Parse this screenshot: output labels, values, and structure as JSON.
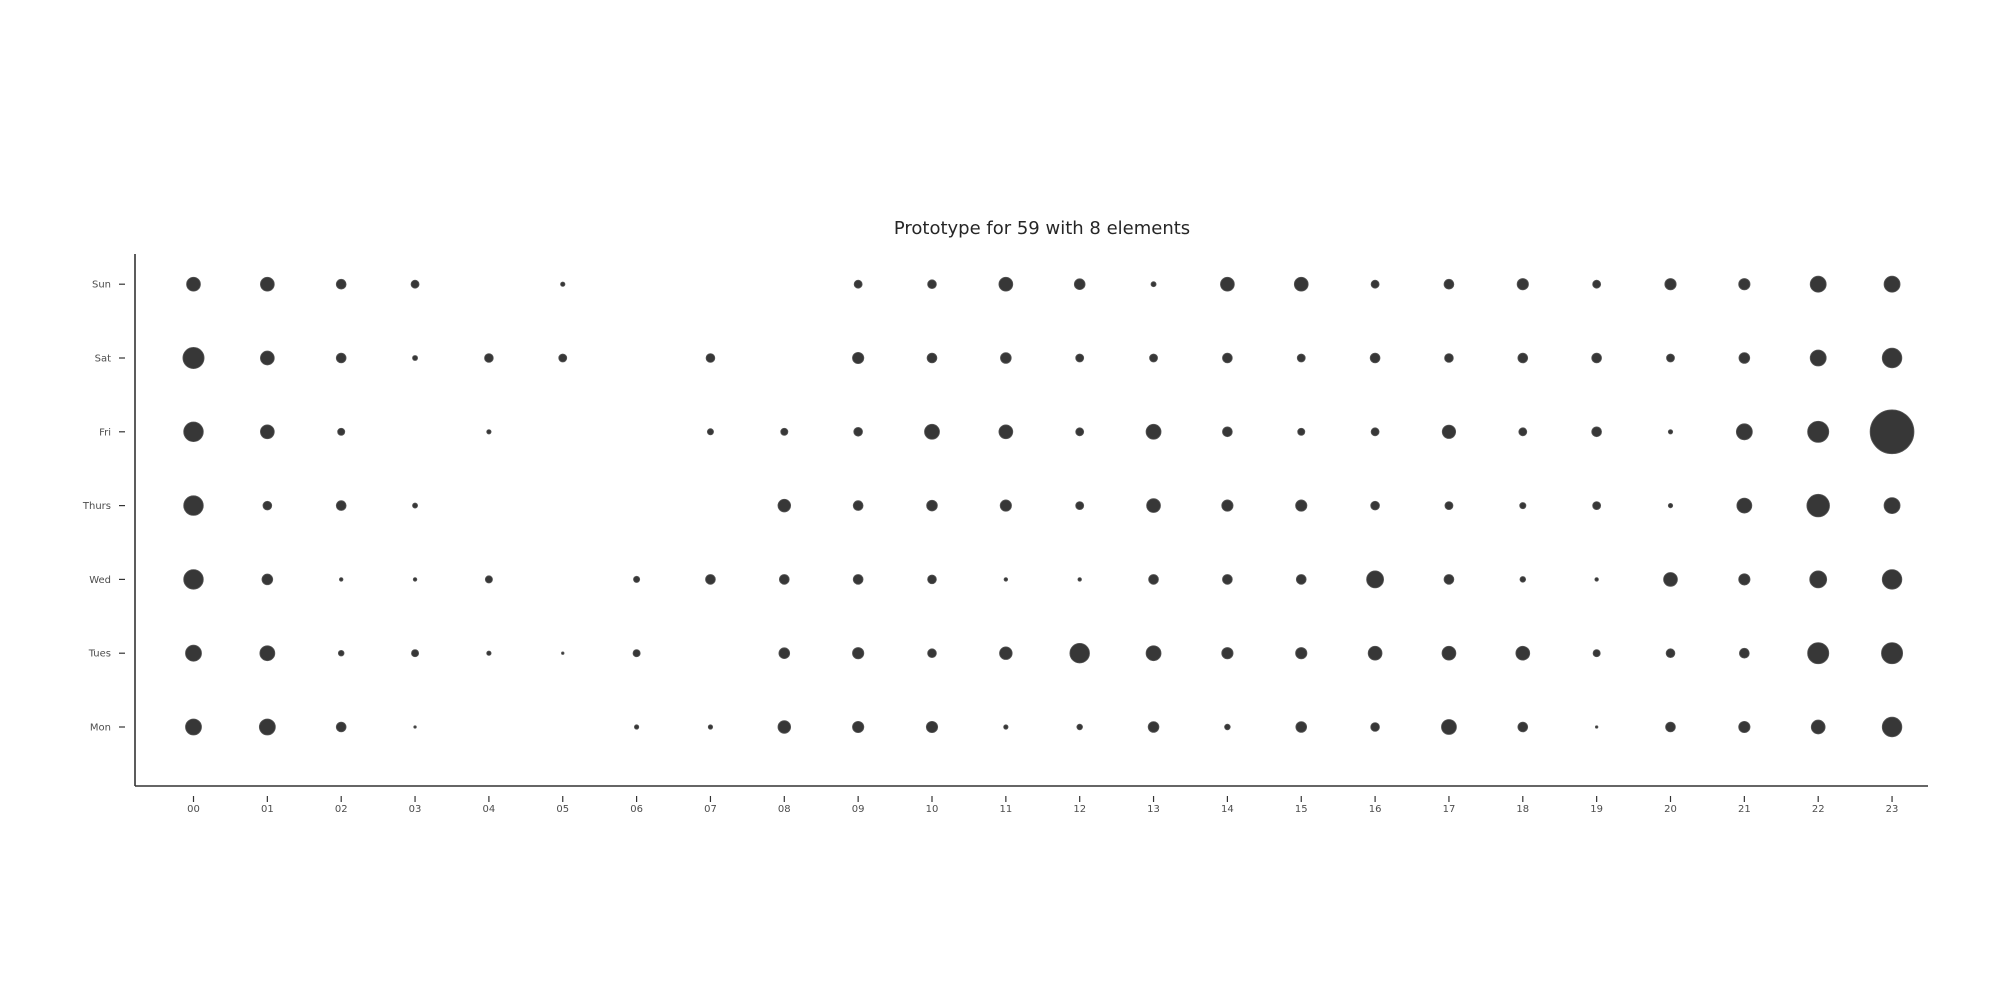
{
  "chart_data": {
    "type": "scatter",
    "title": "Prototype for 59 with 8 elements",
    "xlabel": "",
    "ylabel": "",
    "grid": false,
    "colors": {
      "marker": "#262626",
      "axis": "#333333",
      "text": "#4d4d4d"
    },
    "x_categories": [
      "00",
      "01",
      "02",
      "03",
      "04",
      "05",
      "06",
      "07",
      "08",
      "09",
      "10",
      "11",
      "12",
      "13",
      "14",
      "15",
      "16",
      "17",
      "18",
      "19",
      "20",
      "21",
      "22",
      "23"
    ],
    "y_categories": [
      "Mon",
      "Tues",
      "Wed",
      "Thurs",
      "Fri",
      "Sat",
      "Sun"
    ],
    "size_values": {
      "Sun": [
        3,
        3,
        1.5,
        1,
        0,
        0.3,
        0,
        0,
        0,
        1,
        1.2,
        3,
        1.8,
        0.4,
        3,
        3,
        1,
        1.5,
        2,
        1,
        2,
        2,
        4,
        4
      ],
      "Sat": [
        7,
        3,
        1.5,
        0.4,
        1.2,
        1,
        0,
        1.2,
        0,
        2,
        1.5,
        1.8,
        1,
        1,
        1.5,
        1,
        1.5,
        1.2,
        1.5,
        1.5,
        1,
        1.8,
        4,
        6
      ],
      "Fri": [
        6,
        3,
        0.8,
        0,
        0.3,
        0,
        0,
        0.6,
        0.8,
        1.2,
        3.5,
        3,
        1,
        3.5,
        1.5,
        0.8,
        1,
        2.8,
        1,
        1.5,
        0.3,
        4,
        7,
        30
      ],
      "Thurs": [
        6,
        1.2,
        1.5,
        0.4,
        0,
        0,
        0,
        0,
        2.5,
        1.5,
        1.8,
        2,
        1,
        3,
        2,
        2,
        1.2,
        1,
        0.6,
        1,
        0.3,
        3.5,
        8,
        4
      ],
      "Wed": [
        6,
        1.8,
        0.2,
        0.2,
        0.8,
        0,
        0.6,
        1.5,
        1.5,
        1.5,
        1.2,
        0.2,
        0.2,
        1.5,
        1.5,
        1.5,
        4.5,
        1.5,
        0.5,
        0.2,
        3,
        2,
        4.5,
        6
      ],
      "Tues": [
        4,
        3.5,
        0.5,
        0.8,
        0.3,
        0.1,
        0.8,
        0,
        1.8,
        2,
        1.2,
        2.5,
        6,
        3.5,
        2,
        2,
        3,
        3,
        3,
        0.8,
        1.2,
        1.5,
        7,
        7
      ],
      "Mon": [
        4,
        4,
        1.5,
        0.1,
        0,
        0,
        0.3,
        0.3,
        2.5,
        2,
        2,
        0.3,
        0.5,
        1.8,
        0.5,
        1.8,
        1.2,
        3.5,
        1.5,
        0.1,
        1.5,
        2,
        3,
        6
      ]
    }
  }
}
